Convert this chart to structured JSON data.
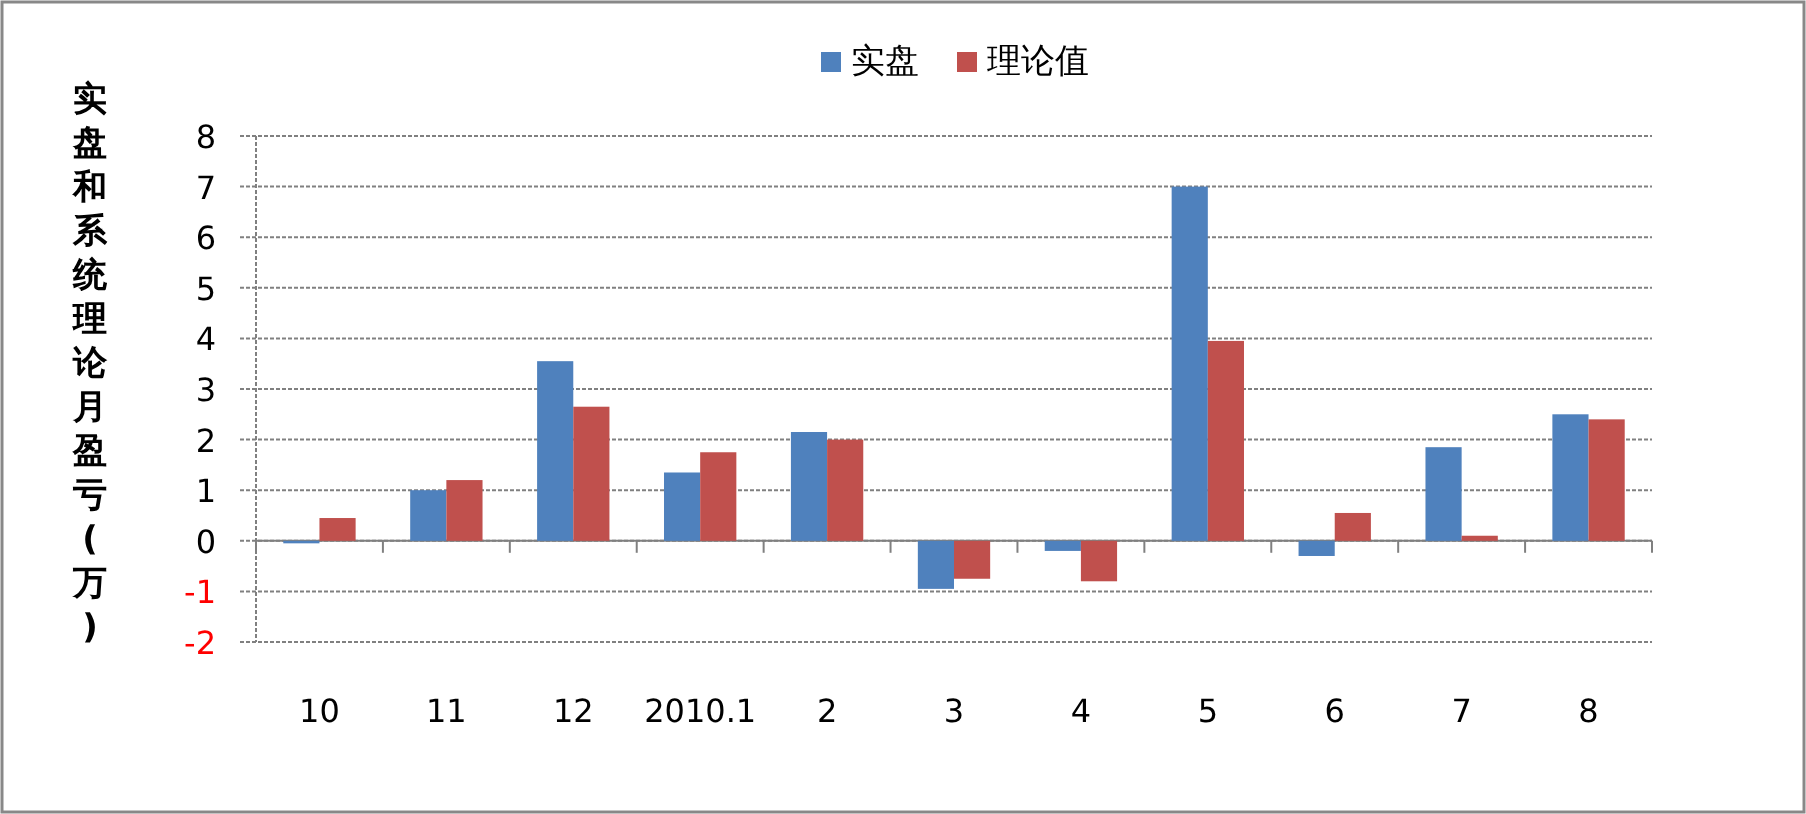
{
  "chart_data": {
    "type": "bar",
    "ylabel": "实盘和系统理论月盈亏(万)",
    "categories": [
      "10",
      "11",
      "12",
      "2010.1",
      "2",
      "3",
      "4",
      "5",
      "6",
      "7",
      "8"
    ],
    "series": [
      {
        "name": "实盘",
        "color": "#4f81bd",
        "values": [
          -0.05,
          1.0,
          3.55,
          1.35,
          2.15,
          -0.95,
          -0.2,
          7.0,
          -0.3,
          1.85,
          2.5
        ]
      },
      {
        "name": "理论值",
        "color": "#c0504d",
        "values": [
          0.45,
          1.2,
          2.65,
          1.75,
          2.0,
          -0.75,
          -0.8,
          3.95,
          0.55,
          0.1,
          2.4
        ]
      }
    ],
    "ylim": [
      -2,
      8
    ],
    "yticks": [
      -2,
      -1,
      0,
      1,
      2,
      3,
      4,
      5,
      6,
      7,
      8
    ],
    "grid": "y",
    "legend": "top"
  }
}
